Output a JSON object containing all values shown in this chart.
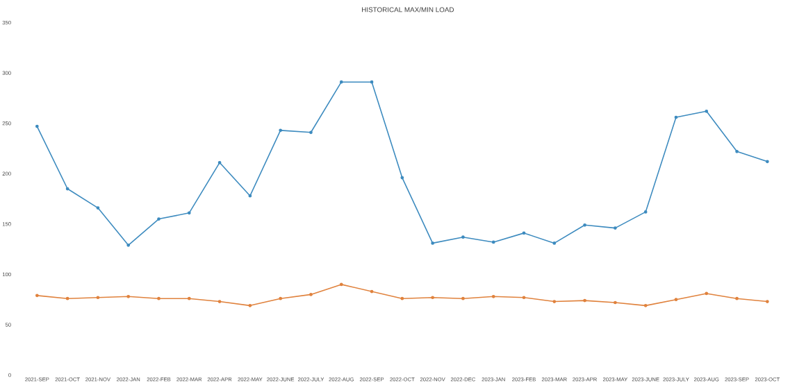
{
  "chart_data": {
    "type": "line",
    "title": "HISTORICAL MAX/MIN LOAD",
    "categories": [
      "2021-SEP",
      "2021-OCT",
      "2021-NOV",
      "2022-JAN",
      "2022-FEB",
      "2022-MAR",
      "2022-APR",
      "2022-MAY",
      "2022-JUNE",
      "2022-JULY",
      "2022-AUG",
      "2022-SEP",
      "2022-OCT",
      "2022-NOV",
      "2022-DEC",
      "2023-JAN",
      "2023-FEB",
      "2023-MAR",
      "2023-APR",
      "2023-MAY",
      "2023-JUNE",
      "2023-JULY",
      "2023-AUG",
      "2023-SEP",
      "2023-OCT"
    ],
    "series": [
      {
        "color": "#3d8bbf",
        "values": [
          247,
          185,
          166,
          129,
          155,
          161,
          211,
          178,
          243,
          241,
          291,
          291,
          196,
          131,
          137,
          132,
          141,
          131,
          149,
          146,
          162,
          256,
          262,
          222,
          212
        ]
      },
      {
        "color": "#e0823d",
        "values": [
          79,
          76,
          77,
          78,
          76,
          76,
          73,
          69,
          76,
          80,
          90,
          83,
          76,
          77,
          76,
          78,
          77,
          73,
          74,
          72,
          69,
          75,
          81,
          76,
          73
        ]
      }
    ],
    "ylim": [
      0,
      350
    ],
    "yticks": [
      0,
      50,
      100,
      150,
      200,
      250,
      300,
      350
    ],
    "marker": "circle",
    "line_style": "solid"
  }
}
